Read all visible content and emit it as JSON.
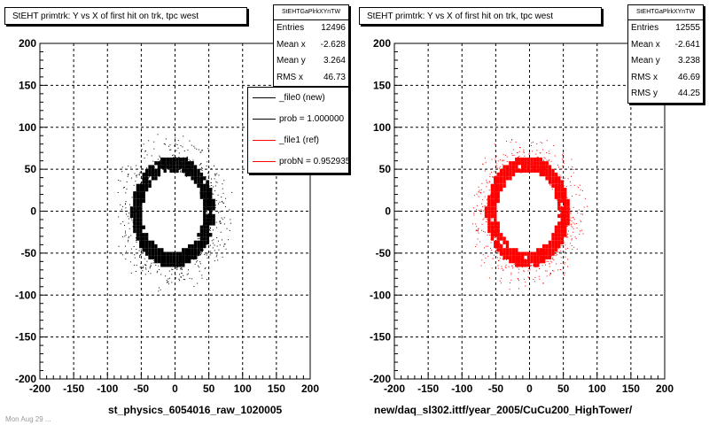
{
  "panels": [
    {
      "title": "StEHT primtrk: Y vs X of first hit on trk, tpc west",
      "stats": {
        "header": "StEHTGaPlrkXYnTW",
        "rows": [
          {
            "label": "Entries",
            "value": "12496"
          },
          {
            "label": "Mean x",
            "value": "-2.628"
          },
          {
            "label": "Mean y",
            "value": "3.264"
          },
          {
            "label": "RMS x",
            "value": "46.73"
          }
        ]
      },
      "legend": [
        {
          "label": "_file0 (new)",
          "color": "#000000"
        },
        {
          "label": "prob = 1.000000",
          "color": "#000000"
        },
        {
          "label": "_file1 (ref)",
          "color": "#ff0000"
        },
        {
          "label": "probN = 0.952935",
          "color": "#ff0000"
        }
      ],
      "x_title": "st_physics_6054016_raw_1020005",
      "color": "#000000"
    },
    {
      "title": "StEHT primtrk: Y vs X of first hit on trk, tpc west",
      "stats": {
        "header": "StEHTGaPlrkXYnTW",
        "rows": [
          {
            "label": "Entries",
            "value": "12555"
          },
          {
            "label": "Mean x",
            "value": "-2.641"
          },
          {
            "label": "Mean y",
            "value": "3.238"
          },
          {
            "label": "RMS x",
            "value": "46.69"
          },
          {
            "label": "RMS y",
            "value": "44.25"
          }
        ]
      },
      "x_title": "new/daq_sl302.ittf/year_2005/CuCu200_HighTower/",
      "color": "#ff0000"
    }
  ],
  "footnote": "Mon Aug 29 ...",
  "chart_data": [
    {
      "type": "scatter",
      "title": "StEHT primtrk: Y vs X of first hit on trk, tpc west",
      "xlabel": "st_physics_6054016_raw_1020005",
      "ylabel": "",
      "xlim": [
        -200,
        200
      ],
      "ylim": [
        -200,
        200
      ],
      "x_ticks": [
        -200,
        -150,
        -100,
        -50,
        0,
        50,
        100,
        150,
        200
      ],
      "y_ticks": [
        -200,
        -150,
        -100,
        -50,
        0,
        50,
        100,
        150,
        200
      ],
      "grid": true,
      "series": [
        {
          "name": "_file0 (new)",
          "color": "#000000",
          "ring_center": [
            -5,
            -3
          ],
          "ring_radius_x": [
            45,
            62
          ],
          "ring_radius_y": [
            48,
            66
          ],
          "scatter_extent": {
            "x": [
              -85,
              100
            ],
            "y": [
              -95,
              100
            ]
          },
          "entries": 12496,
          "mean_x": -2.628,
          "mean_y": 3.264,
          "rms_x": 46.73
        }
      ]
    },
    {
      "type": "scatter",
      "title": "StEHT primtrk: Y vs X of first hit on trk, tpc west",
      "xlabel": "new/daq_sl302.ittf/year_2005/CuCu200_HighTower/",
      "ylabel": "",
      "xlim": [
        -200,
        200
      ],
      "ylim": [
        -200,
        200
      ],
      "x_ticks": [
        -200,
        -150,
        -100,
        -50,
        0,
        50,
        100,
        150,
        200
      ],
      "y_ticks": [
        -200,
        -150,
        -100,
        -50,
        0,
        50,
        100,
        150,
        200
      ],
      "grid": true,
      "series": [
        {
          "name": "_file1 (ref)",
          "color": "#ff0000",
          "ring_center": [
            -5,
            -3
          ],
          "ring_radius_x": [
            45,
            62
          ],
          "ring_radius_y": [
            48,
            66
          ],
          "scatter_extent": {
            "x": [
              -85,
              100
            ],
            "y": [
              -95,
              100
            ]
          },
          "entries": 12555,
          "mean_x": -2.641,
          "mean_y": 3.238,
          "rms_x": 46.69,
          "rms_y": 44.25
        }
      ]
    }
  ]
}
